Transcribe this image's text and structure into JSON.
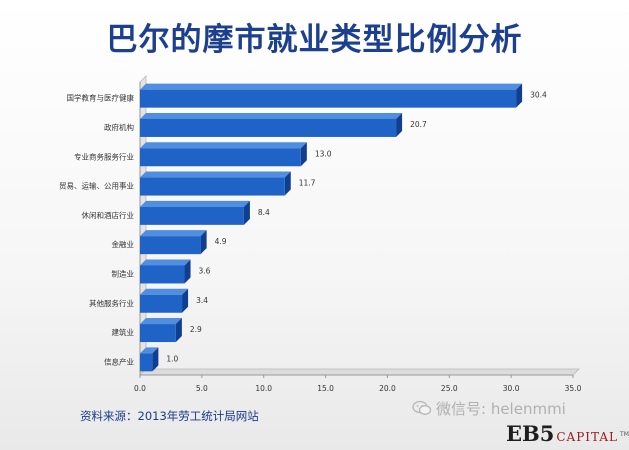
{
  "title": "巴尔的摩市就业类型比例分析",
  "source_note": "资料来源：2013年劳工统计局网站",
  "watermark": {
    "text": "微信号: helenmmi",
    "icon": "wechat-icon"
  },
  "logo": {
    "eb5": "EB5",
    "capital": "CAPITAL",
    "tm": "TM"
  },
  "colors": {
    "bar": "#1f63c6",
    "bar_top": "#4f8ee0",
    "bar_side": "#0f3f8e",
    "title": "#1c3f8f"
  },
  "chart_data": {
    "type": "bar",
    "orientation": "horizontal",
    "categories": [
      "国学教育与医疗健康",
      "政府机构",
      "专业商务服务行业",
      "贸易、运输、公用事业",
      "休闲和酒店行业",
      "金融业",
      "制造业",
      "其他服务行业",
      "建筑业",
      "信息产业"
    ],
    "values": [
      30.4,
      20.7,
      13.0,
      11.7,
      8.4,
      4.9,
      3.6,
      3.4,
      2.9,
      1.0
    ],
    "value_labels": [
      "30.4",
      "20.7",
      "13.0",
      "11.7",
      "8.4",
      "4.9",
      "3.6",
      "3.4",
      "2.9",
      "1.0"
    ],
    "xlim": [
      0,
      35
    ],
    "xticks": [
      "0.0",
      "5.0",
      "10.0",
      "15.0",
      "20.0",
      "25.0",
      "30.0",
      "35.0"
    ],
    "grid": false,
    "legend": "none"
  }
}
